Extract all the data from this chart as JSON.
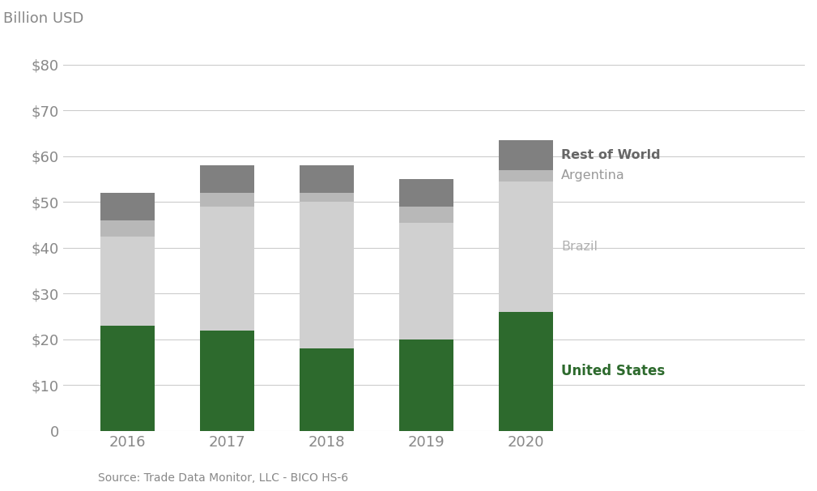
{
  "years": [
    "2016",
    "2017",
    "2018",
    "2019",
    "2020"
  ],
  "united_states": [
    23.0,
    22.0,
    18.0,
    20.0,
    26.0
  ],
  "brazil": [
    19.5,
    27.0,
    32.0,
    25.5,
    28.5
  ],
  "argentina": [
    3.5,
    3.0,
    2.0,
    3.5,
    2.5
  ],
  "rest_of_world": [
    6.0,
    6.0,
    6.0,
    6.0,
    6.5
  ],
  "colors": {
    "united_states": "#2d6a2d",
    "brazil": "#d0d0d0",
    "argentina": "#b8b8b8",
    "rest_of_world": "#808080"
  },
  "label_colors": {
    "united_states": "#2d6a2d",
    "brazil": "#b0b0b0",
    "argentina": "#999999",
    "rest_of_world": "#666666"
  },
  "ylim": [
    0,
    85
  ],
  "yticks": [
    0,
    10,
    20,
    30,
    40,
    50,
    60,
    70,
    80
  ],
  "ytick_labels": [
    "0",
    "$10",
    "$20",
    "$30",
    "$40",
    "$50",
    "$60",
    "$70",
    "$80"
  ],
  "source_text": "Source: Trade Data Monitor, LLC - BICO HS-6",
  "ylabel_text": "Billion USD",
  "background_color": "#ffffff",
  "bar_width": 0.55,
  "tick_color": "#aaaaaa",
  "grid_color": "#cccccc"
}
